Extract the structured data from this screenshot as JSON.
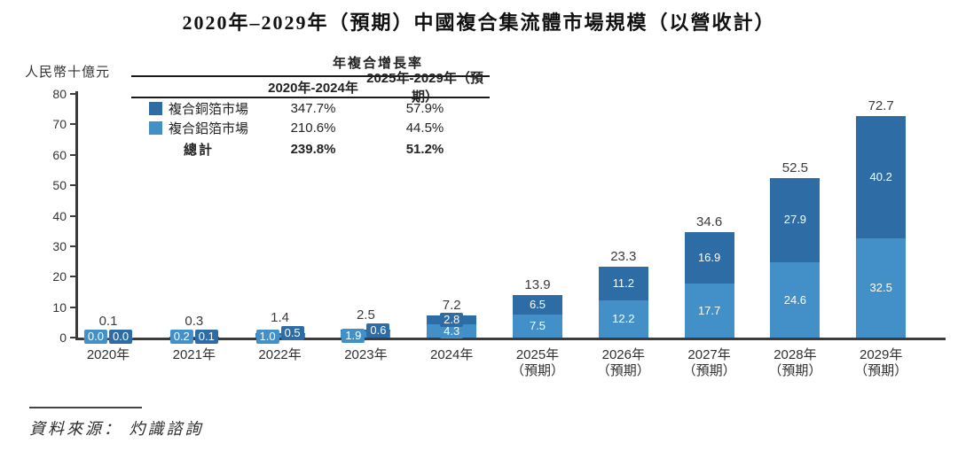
{
  "title": "2020年–2029年（預期）中國複合集流體市場規模（以營收計）",
  "source": {
    "text": "資料來源： 灼識諮詢"
  },
  "chart_data": {
    "type": "bar",
    "stacked": true,
    "title": "2020年–2029年（預期）中國複合集流體市場規模（以營收計）",
    "unit_label": "人民幣十億元",
    "xlabel": "",
    "ylabel": "人民幣十億元",
    "ylim": [
      0,
      80
    ],
    "y_ticks": [
      0,
      10,
      20,
      30,
      40,
      50,
      60,
      70,
      80
    ],
    "grid": false,
    "legend_position": "top-left",
    "categories": [
      "2020年",
      "2021年",
      "2022年",
      "2023年",
      "2024年",
      "2025年",
      "2026年",
      "2027年",
      "2028年",
      "2029年"
    ],
    "forecast_suffix": "（預期）",
    "forecast_from_index": 5,
    "series": [
      {
        "name": "複合銅箔市場",
        "color": "#2d6ca4",
        "position": "top",
        "values": [
          0.0,
          0.1,
          0.5,
          0.6,
          2.8,
          6.5,
          11.2,
          16.9,
          27.9,
          40.2
        ]
      },
      {
        "name": "複合鋁箔市場",
        "color": "#4390c8",
        "position": "bottom",
        "values": [
          0.0,
          0.2,
          1.0,
          1.9,
          4.3,
          7.5,
          12.2,
          17.7,
          24.6,
          32.5
        ]
      }
    ],
    "totals": [
      0.1,
      0.3,
      1.4,
      2.5,
      7.2,
      13.9,
      23.3,
      34.6,
      52.5,
      72.7
    ],
    "cagr_table": {
      "header": "年複合增長率",
      "col_headers": [
        "2020年-2024年",
        "2025年-2029年（預期）"
      ],
      "rows": [
        {
          "label": "複合銅箔市場",
          "swatch": "#2d6ca4",
          "values": [
            "347.7%",
            "57.9%"
          ],
          "bold": false
        },
        {
          "label": "複合鋁箔市場",
          "swatch": "#4390c8",
          "values": [
            "210.6%",
            "44.5%"
          ],
          "bold": false
        },
        {
          "label": "總計",
          "swatch": null,
          "values": [
            "239.8%",
            "51.2%"
          ],
          "bold": true
        }
      ]
    }
  }
}
